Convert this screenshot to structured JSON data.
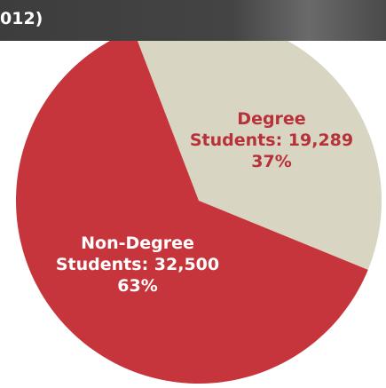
{
  "chart_data": {
    "type": "pie",
    "title": "012)",
    "categories": [
      "Degree\nStudents: 19,289",
      "Non-Degree\nStudents: 32,500"
    ],
    "values": [
      37,
      63
    ],
    "value_labels": [
      "37%",
      "63%"
    ],
    "colors": [
      "#d8d6c2",
      "#c7353c"
    ],
    "label_colors": [
      "#b8313a",
      "#ffffff"
    ]
  }
}
